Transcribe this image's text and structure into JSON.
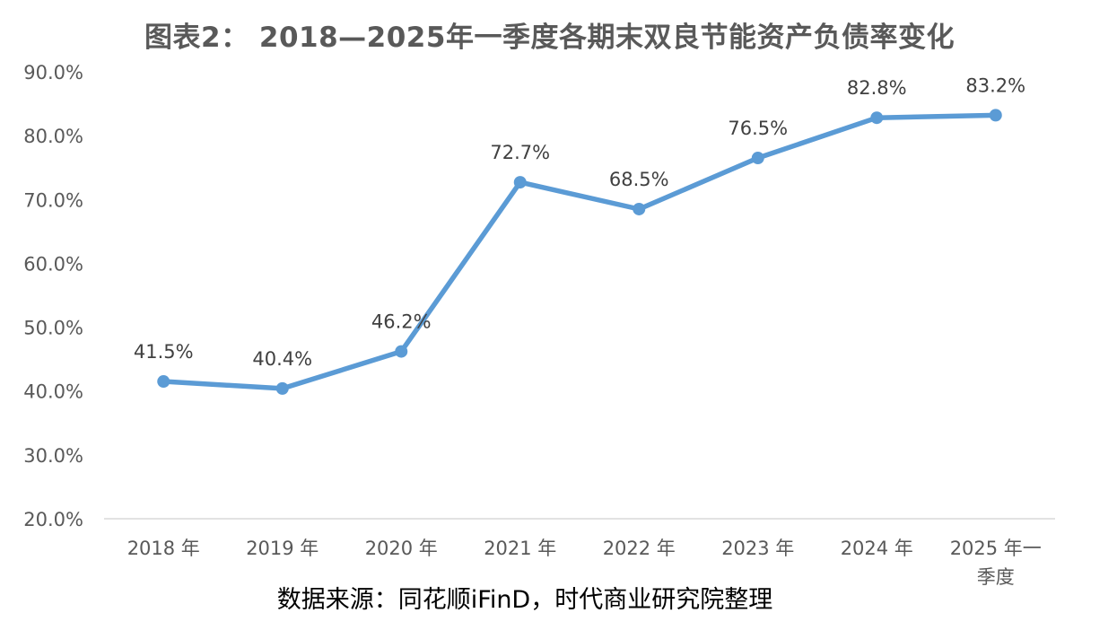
{
  "chart_data": {
    "type": "line",
    "title": "图表2： 2018—2025年一季度各期末双良节能资产负债率变化",
    "source": "数据来源：同花顺iFinD，时代商业研究院整理",
    "categories": [
      "2018 年",
      "2019 年",
      "2020 年",
      "2021 年",
      "2022 年",
      "2023 年",
      "2024 年",
      "2025 年一季度"
    ],
    "series": [
      {
        "values": [
          41.5,
          40.4,
          46.2,
          72.7,
          68.5,
          76.5,
          82.8,
          83.2
        ],
        "labels": [
          "41.5%",
          "40.4%",
          "46.2%",
          "72.7%",
          "68.5%",
          "76.5%",
          "82.8%",
          "83.2%"
        ]
      }
    ],
    "y_ticks": [
      "20.0%",
      "30.0%",
      "40.0%",
      "50.0%",
      "60.0%",
      "70.0%",
      "80.0%",
      "90.0%"
    ],
    "ylim": [
      20,
      90
    ],
    "grid": false,
    "legend": "none",
    "colors": {
      "line": "#5B9BD5",
      "axis": "#D9D9D9",
      "tick_text": "#595959",
      "label_text": "#404040"
    }
  }
}
